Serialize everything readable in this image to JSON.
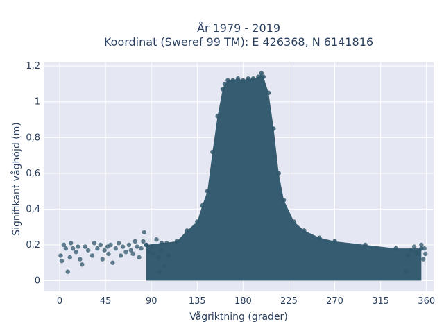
{
  "chart_data": {
    "type": "scatter",
    "title": "År 1979 - 2019",
    "subtitle": "Koordinat (Sweref 99 TM): E 426368, N 6141816",
    "xlabel": "Vågriktning (grader)",
    "ylabel": "Signifikant våghöjd (m)",
    "xlim": [
      -15,
      367
    ],
    "ylim": [
      -0.06,
      1.22
    ],
    "xticks": [
      0,
      45,
      90,
      135,
      180,
      225,
      270,
      315,
      360
    ],
    "xtick_labels": [
      "0",
      "45",
      "90",
      "135",
      "180",
      "225",
      "270",
      "315",
      "360"
    ],
    "yticks": [
      0,
      0.2,
      0.4,
      0.6,
      0.8,
      1,
      1.2
    ],
    "ytick_labels": [
      "0",
      "0,2",
      "0,4",
      "0,6",
      "0,8",
      "1",
      "1,2"
    ],
    "grid": true,
    "background": "#e5e8f2",
    "marker_color": "#2f566b",
    "density_envelope": {
      "description": "upper envelope of the dense point cloud (data units)",
      "x": [
        85,
        100,
        115,
        125,
        135,
        140,
        145,
        150,
        155,
        160,
        162,
        165,
        170,
        175,
        180,
        185,
        190,
        195,
        198,
        200,
        205,
        210,
        215,
        220,
        230,
        240,
        255,
        270,
        300,
        330,
        355
      ],
      "y": [
        0.2,
        0.21,
        0.22,
        0.28,
        0.33,
        0.42,
        0.5,
        0.72,
        0.92,
        1.07,
        1.1,
        1.12,
        1.12,
        1.13,
        1.12,
        1.13,
        1.13,
        1.14,
        1.16,
        1.14,
        1.05,
        0.85,
        0.6,
        0.45,
        0.33,
        0.28,
        0.24,
        0.22,
        0.2,
        0.18,
        0.18
      ]
    },
    "points": [
      [
        1,
        0.14
      ],
      [
        2,
        0.11
      ],
      [
        4,
        0.2
      ],
      [
        6,
        0.18
      ],
      [
        8,
        0.05
      ],
      [
        10,
        0.13
      ],
      [
        11,
        0.21
      ],
      [
        13,
        0.18
      ],
      [
        16,
        0.16
      ],
      [
        18,
        0.19
      ],
      [
        20,
        0.12
      ],
      [
        22,
        0.09
      ],
      [
        25,
        0.19
      ],
      [
        28,
        0.17
      ],
      [
        32,
        0.14
      ],
      [
        34,
        0.21
      ],
      [
        37,
        0.18
      ],
      [
        40,
        0.2
      ],
      [
        42,
        0.12
      ],
      [
        44,
        0.17
      ],
      [
        47,
        0.19
      ],
      [
        48,
        0.15
      ],
      [
        50,
        0.2
      ],
      [
        52,
        0.1
      ],
      [
        55,
        0.18
      ],
      [
        58,
        0.21
      ],
      [
        60,
        0.14
      ],
      [
        62,
        0.19
      ],
      [
        65,
        0.16
      ],
      [
        68,
        0.2
      ],
      [
        70,
        0.17
      ],
      [
        72,
        0.15
      ],
      [
        74,
        0.22
      ],
      [
        76,
        0.19
      ],
      [
        78,
        0.13
      ],
      [
        80,
        0.18
      ],
      [
        82,
        0.22
      ],
      [
        83,
        0.27
      ],
      [
        85,
        0.2
      ],
      [
        88,
        0.16
      ],
      [
        90,
        0.19
      ],
      [
        92,
        0.15
      ],
      [
        95,
        0.23
      ],
      [
        97,
        0.13
      ],
      [
        98,
        0.05
      ],
      [
        100,
        0.17
      ],
      [
        103,
        0.08
      ],
      [
        105,
        0.21
      ],
      [
        107,
        0.14
      ],
      [
        340,
        0.05
      ],
      [
        342,
        0.14
      ],
      [
        345,
        0.17
      ],
      [
        348,
        0.19
      ],
      [
        350,
        0.16
      ],
      [
        352,
        0.15
      ],
      [
        355,
        0.2
      ],
      [
        357,
        0.12
      ],
      [
        358,
        0.18
      ],
      [
        359,
        0.15
      ]
    ]
  }
}
